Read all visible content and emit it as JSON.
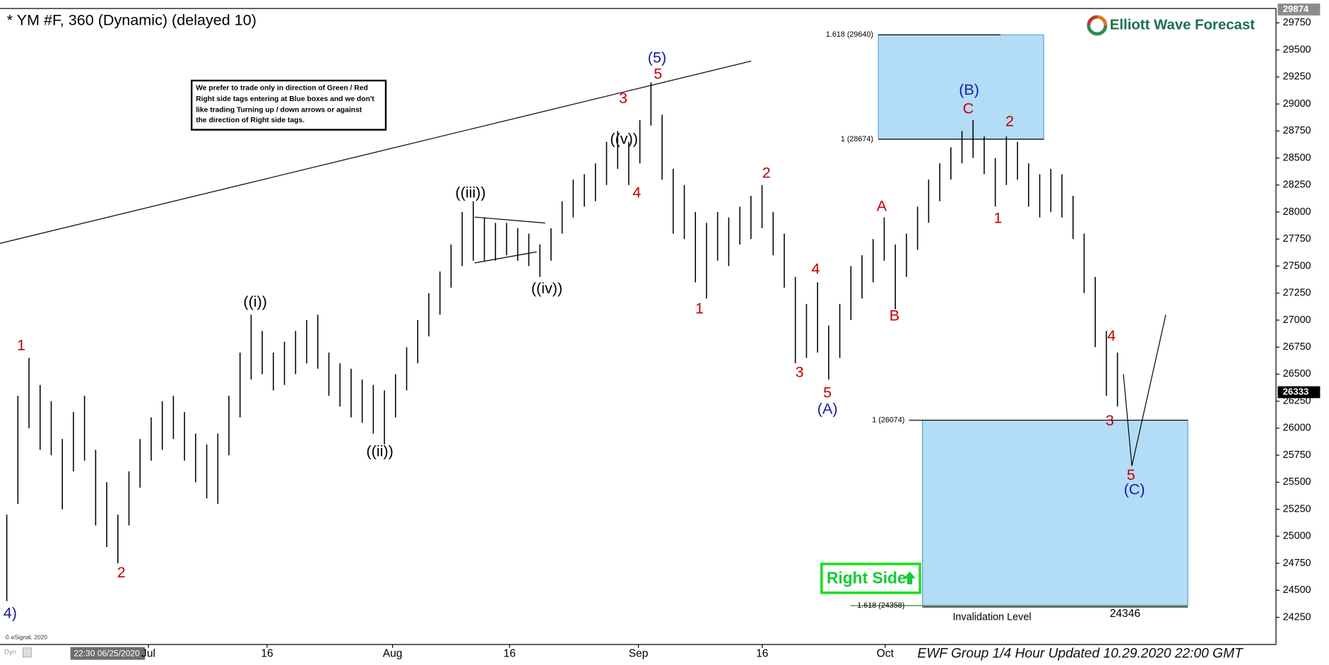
{
  "chart_data": {
    "type": "ohlc",
    "title": "* YM #F, 360 (Dynamic) (delayed 10)",
    "logo": "Elliott Wave Forecast",
    "color": "#000000",
    "ylim": [
      24000,
      29900
    ],
    "yticks": [
      24250,
      24500,
      24750,
      25000,
      25250,
      25500,
      25750,
      26000,
      26250,
      26500,
      26750,
      27000,
      27250,
      27500,
      27750,
      28000,
      28250,
      28500,
      28750,
      29000,
      29250,
      29500,
      29750
    ],
    "categories": [
      "Jul",
      "16",
      "Aug",
      "16",
      "Sep",
      "16",
      "Oct"
    ],
    "high": [
      25200,
      26300,
      26650,
      26400,
      26250,
      25900,
      26150,
      26300,
      25800,
      25500,
      25200,
      25600,
      25900,
      26100,
      26250,
      26300,
      26150,
      25950,
      25850,
      25950,
      26300,
      26700,
      27050,
      26900,
      26700,
      26800,
      26900,
      27000,
      27050,
      26700,
      26600,
      26550,
      26450,
      26400,
      26350,
      26500,
      26750,
      27000,
      27250,
      27450,
      27700,
      28000,
      28100,
      27950,
      27900,
      27900,
      27850,
      27800,
      27700,
      27850,
      28100,
      28300,
      28350,
      28450,
      28650,
      28750,
      28650,
      28850,
      29200,
      28900,
      28400,
      28250,
      28000,
      27900,
      28000,
      27950,
      28050,
      28150,
      28250,
      28000,
      27800,
      27400,
      27150,
      27350,
      26950,
      27150,
      27500,
      27600,
      27750,
      27950,
      27700,
      27800,
      28050,
      28300,
      28450,
      28600,
      28750,
      28850,
      28700,
      28500,
      28700,
      28650,
      28450,
      28350,
      28400,
      28350,
      28150,
      27800,
      27400,
      26900,
      26700
    ],
    "low": [
      24400,
      25300,
      26000,
      25800,
      25750,
      25250,
      25600,
      25700,
      25100,
      24900,
      24750,
      25100,
      25450,
      25700,
      25800,
      25900,
      25700,
      25500,
      25350,
      25300,
      25750,
      26100,
      26450,
      26500,
      26350,
      26400,
      26500,
      26600,
      26550,
      26300,
      26200,
      26100,
      26050,
      25950,
      25850,
      26100,
      26350,
      26600,
      26850,
      27050,
      27300,
      27500,
      27550,
      27550,
      27550,
      27600,
      27550,
      27500,
      27400,
      27550,
      27800,
      27950,
      28050,
      28100,
      28250,
      28400,
      28250,
      28450,
      28800,
      28300,
      27800,
      27750,
      27350,
      27200,
      27550,
      27500,
      27700,
      27750,
      27850,
      27600,
      27300,
      26600,
      26650,
      26700,
      26450,
      26650,
      27000,
      27200,
      27350,
      27550,
      27100,
      27400,
      27650,
      27900,
      28100,
      28300,
      28450,
      28500,
      28350,
      28050,
      28250,
      28300,
      28050,
      27950,
      28000,
      27950,
      27750,
      27250,
      26750,
      26300,
      26200
    ],
    "trendline": [
      27710,
      29397
    ],
    "projection": [
      26500,
      25650,
      27050
    ],
    "boxes": [
      {
        "top": {
          "value": 29640,
          "label": "1.618 (29640)"
        },
        "bottom": {
          "value": 28674,
          "label": "1 (28674)"
        }
      },
      {
        "top": {
          "value": 26074,
          "label": "1 (26074)"
        },
        "bottom": {
          "value": 24358,
          "label": "1.618 (24358)"
        }
      }
    ],
    "invalidation": {
      "label": "Invalidation Level",
      "value": 24346
    },
    "price_tags": [
      {
        "value": 29874,
        "color": "#8c8c8c"
      },
      {
        "value": 26333,
        "color": "#000000"
      }
    ],
    "wave_labels": [
      {
        "text": "1",
        "color": "#c00000"
      },
      {
        "text": "2",
        "color": "#c00000"
      },
      {
        "text": "4)",
        "color": "#1a1aa8"
      },
      {
        "text": "((i))",
        "color": "#000000"
      },
      {
        "text": "((ii))",
        "color": "#000000"
      },
      {
        "text": "((iii))",
        "color": "#000000"
      },
      {
        "text": "((iv))",
        "color": "#000000"
      },
      {
        "text": "((v))",
        "color": "#000000"
      },
      {
        "text": "3",
        "color": "#c00000"
      },
      {
        "text": "4",
        "color": "#c00000"
      },
      {
        "text": "5",
        "color": "#c00000"
      },
      {
        "text": "(5)",
        "color": "#1a1aa8"
      },
      {
        "text": "1",
        "color": "#c00000"
      },
      {
        "text": "2",
        "color": "#c00000"
      },
      {
        "text": "3",
        "color": "#c00000"
      },
      {
        "text": "4",
        "color": "#c00000"
      },
      {
        "text": "5",
        "color": "#c00000"
      },
      {
        "text": "(A)",
        "color": "#1a1aa8"
      },
      {
        "text": "A",
        "color": "#c00000"
      },
      {
        "text": "B",
        "color": "#c00000"
      },
      {
        "text": "C",
        "color": "#c00000"
      },
      {
        "text": "(B)",
        "color": "#1a1aa8"
      },
      {
        "text": "2",
        "color": "#c00000"
      },
      {
        "text": "1",
        "color": "#c00000"
      },
      {
        "text": "4",
        "color": "#c00000"
      },
      {
        "text": "3",
        "color": "#c00000"
      },
      {
        "text": "5",
        "color": "#c00000"
      },
      {
        "text": "(C)",
        "color": "#1a1aa8"
      }
    ],
    "note": [
      "We prefer to trade only in direction of Green / Red",
      "Right side tags entering at Blue boxes and we don't",
      "like trading Turning up / down arrows or against",
      "the direction of Right side tags."
    ],
    "button": "Right Side",
    "footer": "EWF Group 1/4 Hour Updated 10.29.2020 22:00 GMT",
    "date_tag": "22:30 06/25/2020",
    "copyright": "© eSignal, 2020",
    "dyn": "Dyn"
  }
}
